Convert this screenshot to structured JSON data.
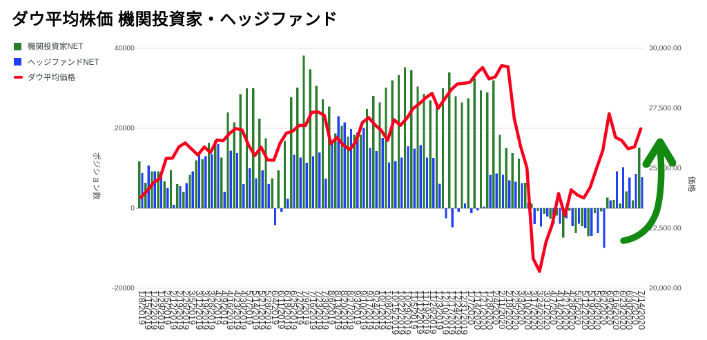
{
  "chart_data": {
    "type": "bar+line",
    "title": "ダウ平均株価 機関投資家・ヘッジファンド",
    "legend": [
      {
        "label": "機関投資家NET",
        "color": "#2a7e2e",
        "marker": "square"
      },
      {
        "label": "ヘッジファンドNET",
        "color": "#2140f0",
        "marker": "square"
      },
      {
        "label": "ダウ平均価格",
        "color": "#f6001e",
        "marker": "dash"
      }
    ],
    "left_axis": {
      "title": "ポジション数",
      "min": -20000,
      "max": 40000,
      "ticks": [
        {
          "label": "40000",
          "value": 40000
        },
        {
          "label": "20000",
          "value": 20000
        },
        {
          "label": "0",
          "value": 0
        },
        {
          "label": "-20000",
          "value": -20000
        }
      ]
    },
    "right_axis": {
      "title": "価格",
      "min": 20000,
      "max": 30000,
      "ticks": [
        {
          "label": "30,000.00",
          "value": 30000
        },
        {
          "label": "27,500.00",
          "value": 27500
        },
        {
          "label": "25,000.00",
          "value": 25000
        },
        {
          "label": "22,500.00",
          "value": 22500
        },
        {
          "label": "20,000.00",
          "value": 20000
        }
      ]
    },
    "categories": [
      "1/8/2019",
      "1/15/2019",
      "1/22/2019",
      "1/29/2019",
      "2/5/2019",
      "2/12/2019",
      "2/19/2019",
      "2/26/2019",
      "3/5/2019",
      "3/12/2019",
      "3/19/2019",
      "3/26/2019",
      "4/2/2019",
      "4/9/2019",
      "4/16/2019",
      "4/23/2019",
      "4/30/2019",
      "5/7/2019",
      "5/14/2019",
      "5/21/2019",
      "5/28/2019",
      "6/4/2019",
      "6/11/2019",
      "6/18/2019",
      "6/25/2019",
      "7/2/2019",
      "7/9/2019",
      "7/16/2019",
      "7/23/2019",
      "7/30/2019",
      "8/6/2019",
      "8/13/2019",
      "8/20/2019",
      "8/27/2019",
      "9/3/2019",
      "9/10/2019",
      "9/17/2019",
      "9/24/2019",
      "10/1/2019",
      "10/8/2019",
      "10/15/2019",
      "10/22/2019",
      "10/29/2019",
      "11/5/2019",
      "11/12/2019",
      "11/19/2019",
      "11/26/2019",
      "12/3/2019",
      "12/10/2019",
      "12/17/2019",
      "12/24/2019",
      "12/31/2019",
      "1/7/2020",
      "1/14/2020",
      "1/21/2020",
      "1/28/2020",
      "2/4/2020",
      "2/11/2020",
      "2/18/2020",
      "2/25/2020",
      "3/3/2020",
      "3/10/2020",
      "3/17/2020",
      "3/24/2020",
      "3/31/2020",
      "4/7/2020",
      "4/14/2020",
      "4/21/2020",
      "4/28/2020",
      "5/5/2020",
      "5/12/2020",
      "5/19/2020",
      "5/26/2020",
      "6/2/2020",
      "6/9/2020",
      "6/16/2020",
      "6/23/2020",
      "6/30/2020",
      "7/7/2020",
      "7/14/2020"
    ],
    "series": [
      {
        "name": "機関投資家NET",
        "type": "bar",
        "axis": "left",
        "color": "#2a7e2e",
        "values": [
          11700,
          6400,
          9200,
          9200,
          6700,
          9600,
          6000,
          4100,
          8400,
          12000,
          12200,
          16400,
          17000,
          12700,
          24000,
          21500,
          28500,
          30000,
          30000,
          22400,
          17500,
          7500,
          9500,
          16800,
          27800,
          30200,
          38200,
          34700,
          30600,
          27200,
          25400,
          18700,
          20600,
          17900,
          18400,
          18400,
          24800,
          28100,
          26500,
          30200,
          32000,
          33300,
          35300,
          34500,
          30400,
          28600,
          27000,
          26000,
          30000,
          34000,
          28000,
          26500,
          27500,
          32500,
          29500,
          29000,
          32000,
          18400,
          15000,
          13800,
          12400,
          6400,
          1200,
          -700,
          -1400,
          -2600,
          -1800,
          -7300,
          -600,
          -6200,
          -4500,
          -7000,
          -1200,
          -800,
          2700,
          2100,
          1200,
          4200,
          2000,
          15200
        ]
      },
      {
        "name": "ヘッジファンドNET",
        "type": "bar",
        "axis": "left",
        "color": "#2140f0",
        "values": [
          8800,
          10700,
          9200,
          9100,
          5100,
          900,
          5500,
          6300,
          9200,
          13500,
          13000,
          13500,
          16000,
          4100,
          14400,
          13800,
          6000,
          10000,
          7500,
          9500,
          6000,
          -4200,
          -900,
          2400,
          13400,
          12700,
          11400,
          13000,
          14000,
          7400,
          16800,
          23000,
          21500,
          19800,
          19000,
          20100,
          15100,
          14300,
          17600,
          11500,
          11800,
          12700,
          15500,
          14900,
          15800,
          12700,
          12600,
          6100,
          -2500,
          -4700,
          -900,
          1200,
          -1200,
          -500,
          400,
          8400,
          8700,
          8400,
          7000,
          6600,
          6300,
          1400,
          -4000,
          -4600,
          -2100,
          -3900,
          -3900,
          -2500,
          -4500,
          -3900,
          -5000,
          -6900,
          -6200,
          -9900,
          2000,
          9200,
          10300,
          7700,
          8600,
          7800
        ]
      },
      {
        "name": "ダウ平均価格",
        "type": "line",
        "axis": "right",
        "color": "#f6001e",
        "values": [
          23787,
          24065,
          24404,
          24580,
          25411,
          25425,
          25891,
          26058,
          25806,
          25555,
          25887,
          25657,
          26179,
          26150,
          26452,
          26656,
          26593,
          25965,
          25532,
          25877,
          25348,
          25332,
          26049,
          26466,
          26548,
          26786,
          26783,
          27335,
          27349,
          27198,
          26029,
          26279,
          25962,
          25778,
          26118,
          26909,
          27111,
          26808,
          26573,
          26164,
          27025,
          26788,
          27071,
          27492,
          27691,
          27934,
          28121,
          27502,
          27881,
          28267,
          28515,
          28538,
          28584,
          28939,
          29196,
          28723,
          28808,
          29276,
          29232,
          27081,
          25917,
          25018,
          21237,
          20704,
          21917,
          22654,
          23949,
          23019,
          24101,
          23883,
          23765,
          24207,
          24995,
          25743,
          27272,
          26290,
          26156,
          25813,
          25890,
          26643
        ]
      }
    ],
    "annotation": {
      "type": "up-trend-arrow",
      "color": "#128a12"
    },
    "grid": {
      "color": "#e0e0e0",
      "zero_line_color": "#999999"
    }
  }
}
